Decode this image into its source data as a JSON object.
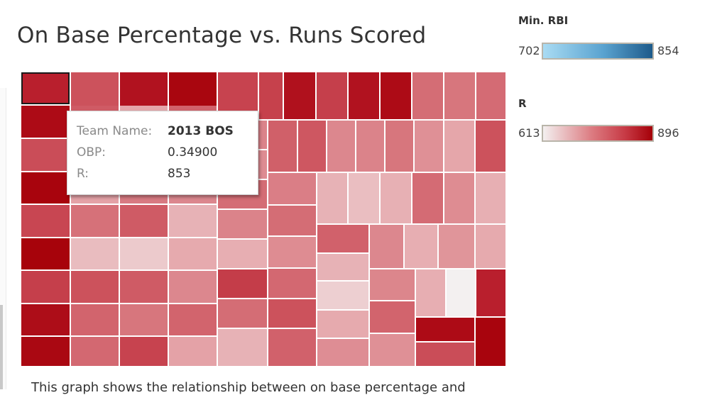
{
  "title": "On Base Percentage vs. Runs Scored",
  "legend": {
    "rbi": {
      "title": "Min. RBI",
      "min": "702",
      "max": "854",
      "color_low": "#a9dbf3",
      "color_high": "#1d5a8a"
    },
    "r": {
      "title": "R",
      "min": "613",
      "max": "896",
      "color_low": "#f3f0f0",
      "color_high": "#a50008"
    }
  },
  "tooltip": {
    "rows": [
      {
        "label": "Team Name:",
        "value": "2013 BOS"
      },
      {
        "label": "OBP:",
        "value": "0.34900"
      },
      {
        "label": "R:",
        "value": "853"
      }
    ]
  },
  "caption": "This graph shows the relationship between on base percentage and",
  "chart_data": {
    "type": "heatmap",
    "subtype": "treemap",
    "title": "On Base Percentage vs. Runs Scored",
    "size_measure": "OBP",
    "color_measure": "R",
    "color_range": [
      613,
      896
    ],
    "selected": {
      "team": "2013 BOS",
      "OBP": 0.349,
      "R": 853
    },
    "tiles_R": [
      853,
      880,
      805,
      890,
      812,
      892,
      820,
      878,
      885,
      800,
      870,
      888,
      815,
      818,
      872,
      820,
      870,
      880,
      770,
      760,
      772,
      790,
      705,
      782,
      800,
      815,
      780,
      710,
      755,
      740,
      765,
      790,
      690,
      678,
      660,
      700,
      800,
      790,
      740,
      780,
      760,
      780,
      775,
      815,
      710,
      745,
      735,
      770,
      745,
      695,
      822,
      770,
      690,
      785,
      795,
      740,
      745,
      760,
      730,
      705,
      800,
      750,
      770,
      735,
      775,
      800,
      783,
      690,
      675,
      692,
      772,
      735,
      693,
      783,
      690,
      654,
      700,
      733,
      740,
      695,
      725,
      700,
      742,
      780,
      730,
      695,
      613
    ]
  }
}
